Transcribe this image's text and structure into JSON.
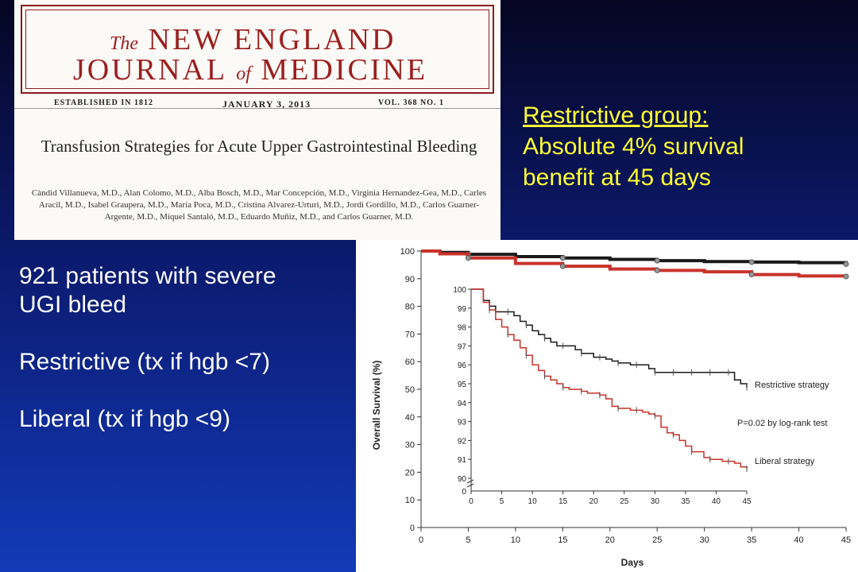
{
  "nejm": {
    "masthead_the": "The",
    "masthead_line1": "NEW ENGLAND",
    "masthead_journal": "JOURNAL",
    "masthead_of": "of",
    "masthead_medicine": "MEDICINE",
    "established": "ESTABLISHED IN 1812",
    "date": "JANUARY 3, 2013",
    "volume": "VOL. 368   NO. 1",
    "article_title": "Transfusion Strategies for Acute Upper Gastrointestinal Bleeding",
    "authors": "Càndid Villanueva, M.D., Alan Colomo, M.D., Alba Bosch, M.D., Mar Concepción, M.D., Virginia Hernandez-Gea, M.D., Carles Aracil, M.D., Isabel Graupera, M.D., María Poca, M.D., Cristina Alvarez-Urturi, M.D., Jordi Gordillo, M.D., Carlos Guarner-Argente, M.D., Miquel Santaló, M.D., Eduardo Muñiz, M.D., and Carlos Guarner, M.D."
  },
  "summary": {
    "title": "Restrictive  group:",
    "line1": "Absolute 4% survival",
    "line2": "benefit at 45 days"
  },
  "left": {
    "line1": "921 patients with severe",
    "line2": "UGI bleed",
    "restrictive": "Restrictive  (tx if hgb <7)",
    "liberal": "Liberal  (tx if hgb <9)"
  },
  "colors": {
    "headline": "#ffff33",
    "body_text": "#ffffff",
    "restrictive_series": "#1a1a1a",
    "liberal_series": "#c8322a",
    "masthead": "#9b1f1f"
  },
  "chart_data": {
    "type": "line",
    "ylabel": "Overall Survival (%)",
    "xlabel": "Days",
    "xlim": [
      0,
      45
    ],
    "ylim": [
      0,
      100
    ],
    "x_ticks": [
      0,
      5,
      10,
      15,
      20,
      25,
      30,
      35,
      40,
      45
    ],
    "y_ticks": [
      0,
      10,
      20,
      30,
      40,
      50,
      60,
      70,
      80,
      90,
      100
    ],
    "series": [
      {
        "name": "Restrictive strategy",
        "color": "#1a1a1a",
        "x": [
          0,
          2,
          5,
          10,
          15,
          20,
          25,
          30,
          35,
          40,
          45
        ],
        "y": [
          100,
          99.5,
          98.8,
          98,
          97.5,
          97,
          96.5,
          96.2,
          96,
          95.8,
          95.3
        ]
      },
      {
        "name": "Liberal strategy",
        "color": "#c8322a",
        "x": [
          0,
          2,
          5,
          10,
          15,
          20,
          25,
          30,
          35,
          40,
          45
        ],
        "y": [
          100,
          99,
          97.5,
          95.5,
          94.5,
          93.5,
          93,
          92.5,
          91.5,
          91,
          90.8
        ]
      }
    ],
    "inset": {
      "xlim": [
        0,
        45
      ],
      "ylim": [
        90,
        100
      ],
      "x_ticks": [
        0,
        5,
        10,
        15,
        20,
        25,
        30,
        35,
        40,
        45
      ],
      "y_ticks": [
        90,
        91,
        92,
        93,
        94,
        95,
        96,
        97,
        98,
        99,
        100
      ],
      "series": [
        {
          "name": "Restrictive strategy",
          "x": [
            0,
            1,
            2,
            3,
            4,
            5,
            6,
            7,
            8,
            9,
            10,
            11,
            12,
            13,
            14,
            15,
            16,
            17,
            18,
            19,
            20,
            21,
            22,
            23,
            24,
            25,
            26,
            27,
            28,
            29,
            30,
            31,
            32,
            33,
            34,
            35,
            36,
            37,
            38,
            39,
            40,
            41,
            42,
            43,
            44,
            45
          ],
          "y": [
            100,
            100,
            99.4,
            99.1,
            98.8,
            98.8,
            98.8,
            98.6,
            98.3,
            98.1,
            97.8,
            97.6,
            97.4,
            97.2,
            97,
            97,
            97,
            96.8,
            96.6,
            96.6,
            96.4,
            96.4,
            96.3,
            96.2,
            96.1,
            96.1,
            96,
            96,
            96,
            95.8,
            95.6,
            95.6,
            95.6,
            95.6,
            95.6,
            95.6,
            95.6,
            95.6,
            95.6,
            95.6,
            95.6,
            95.6,
            95.6,
            95.2,
            95,
            94.8
          ]
        },
        {
          "name": "Liberal strategy",
          "x": [
            0,
            1,
            2,
            3,
            4,
            5,
            6,
            7,
            8,
            9,
            10,
            11,
            12,
            13,
            14,
            15,
            16,
            17,
            18,
            19,
            20,
            21,
            22,
            23,
            24,
            25,
            26,
            27,
            28,
            29,
            30,
            31,
            32,
            33,
            34,
            35,
            36,
            37,
            38,
            39,
            40,
            41,
            42,
            43,
            44,
            45
          ],
          "y": [
            100,
            100,
            99.3,
            98.9,
            98.4,
            98,
            97.6,
            97.3,
            96.9,
            96.5,
            96,
            95.7,
            95.4,
            95.2,
            95,
            94.8,
            94.7,
            94.7,
            94.6,
            94.5,
            94.5,
            94.4,
            94.2,
            93.8,
            93.7,
            93.7,
            93.6,
            93.6,
            93.5,
            93.4,
            93.3,
            92.7,
            92.4,
            92.3,
            92.0,
            91.7,
            91.4,
            91.4,
            91.1,
            91,
            91,
            90.9,
            90.9,
            90.8,
            90.6,
            90.5
          ]
        }
      ],
      "labels": {
        "restrictive": "Restrictive strategy",
        "pvalue": "P=0.02 by log-rank test",
        "liberal": "Liberal strategy"
      }
    }
  }
}
